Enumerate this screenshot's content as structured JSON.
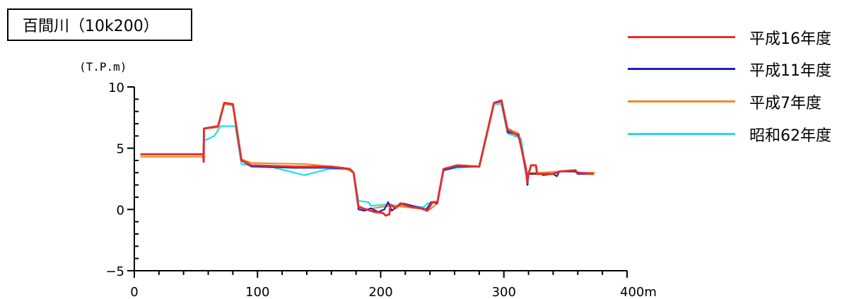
{
  "title": "百間川（10k200）",
  "chart_data": {
    "type": "line",
    "y_unit_label": "(T.P.m)",
    "x_unit_suffix": "m",
    "xlim": [
      0,
      400
    ],
    "ylim": [
      -5,
      10
    ],
    "x_ticks": [
      0,
      100,
      200,
      300,
      400
    ],
    "x_tick_labels": [
      "0",
      "100",
      "200",
      "300",
      "400m"
    ],
    "y_ticks": [
      -5,
      0,
      5,
      10
    ],
    "y_tick_labels": [
      "−5",
      "0",
      "5",
      "10"
    ],
    "grid": false,
    "legend_position": "top-right",
    "series": [
      {
        "name": "平成16年度",
        "color": "#e03030",
        "points": [
          [
            5,
            4.5
          ],
          [
            56,
            4.5
          ],
          [
            56.3,
            3.9
          ],
          [
            56.5,
            6.6
          ],
          [
            68,
            6.8
          ],
          [
            73,
            8.7
          ],
          [
            80,
            8.6
          ],
          [
            87,
            4.0
          ],
          [
            95,
            3.6
          ],
          [
            130,
            3.5
          ],
          [
            160,
            3.5
          ],
          [
            175,
            3.3
          ],
          [
            178,
            3.0
          ],
          [
            182,
            0.2
          ],
          [
            195,
            -0.2
          ],
          [
            202,
            -0.3
          ],
          [
            204,
            -0.5
          ],
          [
            207,
            -0.4
          ],
          [
            208,
            0.4
          ],
          [
            212,
            0.1
          ],
          [
            216,
            0.5
          ],
          [
            225,
            0.2
          ],
          [
            232,
            0.1
          ],
          [
            238,
            -0.1
          ],
          [
            242,
            0.6
          ],
          [
            246,
            0.6
          ],
          [
            251,
            3.3
          ],
          [
            262,
            3.6
          ],
          [
            280,
            3.5
          ],
          [
            292,
            8.7
          ],
          [
            298,
            8.9
          ],
          [
            303,
            6.5
          ],
          [
            312,
            6.0
          ],
          [
            318,
            3.3
          ],
          [
            319,
            2.2
          ],
          [
            320,
            2.9
          ],
          [
            322,
            3.6
          ],
          [
            326,
            3.6
          ],
          [
            327,
            2.9
          ],
          [
            340,
            2.9
          ],
          [
            345,
            3.1
          ],
          [
            358,
            3.2
          ],
          [
            360,
            3.0
          ],
          [
            373,
            2.9
          ]
        ]
      },
      {
        "name": "平成11年度",
        "color": "#2020c0",
        "points": [
          [
            5,
            4.5
          ],
          [
            56,
            4.5
          ],
          [
            56.5,
            6.6
          ],
          [
            68,
            6.8
          ],
          [
            73,
            8.7
          ],
          [
            80,
            8.6
          ],
          [
            87,
            4.0
          ],
          [
            95,
            3.5
          ],
          [
            130,
            3.4
          ],
          [
            160,
            3.4
          ],
          [
            175,
            3.3
          ],
          [
            178,
            3.0
          ],
          [
            182,
            0.0
          ],
          [
            187,
            -0.1
          ],
          [
            192,
            0.1
          ],
          [
            198,
            -0.2
          ],
          [
            203,
            0.0
          ],
          [
            206,
            0.6
          ],
          [
            209,
            -0.1
          ],
          [
            214,
            0.3
          ],
          [
            218,
            0.5
          ],
          [
            230,
            0.2
          ],
          [
            237,
            0.0
          ],
          [
            241,
            0.6
          ],
          [
            246,
            0.5
          ],
          [
            251,
            3.2
          ],
          [
            262,
            3.5
          ],
          [
            280,
            3.5
          ],
          [
            292,
            8.7
          ],
          [
            298,
            8.8
          ],
          [
            303,
            6.3
          ],
          [
            312,
            6.1
          ],
          [
            318,
            3.0
          ],
          [
            319,
            2.0
          ],
          [
            320,
            2.9
          ],
          [
            330,
            2.9
          ],
          [
            332,
            2.8
          ],
          [
            340,
            2.9
          ],
          [
            343,
            2.7
          ],
          [
            345,
            3.1
          ],
          [
            358,
            3.1
          ],
          [
            360,
            2.9
          ],
          [
            372,
            2.9
          ]
        ]
      },
      {
        "name": "平成7年度",
        "color": "#f08a20",
        "points": [
          [
            5,
            4.3
          ],
          [
            56,
            4.3
          ],
          [
            56.5,
            6.6
          ],
          [
            68,
            6.7
          ],
          [
            73,
            8.6
          ],
          [
            80,
            8.5
          ],
          [
            87,
            4.1
          ],
          [
            95,
            3.8
          ],
          [
            140,
            3.7
          ],
          [
            170,
            3.4
          ],
          [
            178,
            3.0
          ],
          [
            182,
            0.3
          ],
          [
            188,
            0.0
          ],
          [
            200,
            0.2
          ],
          [
            210,
            0.3
          ],
          [
            230,
            0.1
          ],
          [
            240,
            0.0
          ],
          [
            246,
            0.5
          ],
          [
            251,
            3.2
          ],
          [
            262,
            3.5
          ],
          [
            280,
            3.5
          ],
          [
            292,
            8.7
          ],
          [
            298,
            8.8
          ],
          [
            303,
            6.6
          ],
          [
            312,
            6.2
          ],
          [
            318,
            3.0
          ],
          [
            330,
            3.0
          ],
          [
            345,
            3.1
          ],
          [
            358,
            3.1
          ],
          [
            362,
            3.0
          ],
          [
            374,
            3.0
          ]
        ]
      },
      {
        "name": "昭和62年度",
        "color": "#20e0e0",
        "points": [
          [
            56.5,
            5.6
          ],
          [
            65,
            6.0
          ],
          [
            70,
            6.8
          ],
          [
            82,
            6.8
          ],
          [
            87,
            3.7
          ],
          [
            95,
            3.6
          ],
          [
            110,
            3.5
          ],
          [
            138,
            2.8
          ],
          [
            158,
            3.3
          ],
          [
            175,
            3.3
          ],
          [
            178,
            3.0
          ],
          [
            182,
            0.7
          ],
          [
            190,
            0.6
          ],
          [
            192,
            0.3
          ],
          [
            205,
            0.4
          ],
          [
            215,
            0.3
          ],
          [
            226,
            0.2
          ],
          [
            235,
            0.2
          ],
          [
            238,
            0.5
          ],
          [
            246,
            0.6
          ],
          [
            251,
            3.2
          ],
          [
            262,
            3.4
          ],
          [
            280,
            3.5
          ],
          [
            292,
            8.6
          ],
          [
            298,
            8.6
          ],
          [
            303,
            6.2
          ],
          [
            314,
            5.8
          ],
          [
            318,
            2.9
          ],
          [
            320,
            2.0
          ]
        ]
      }
    ]
  }
}
